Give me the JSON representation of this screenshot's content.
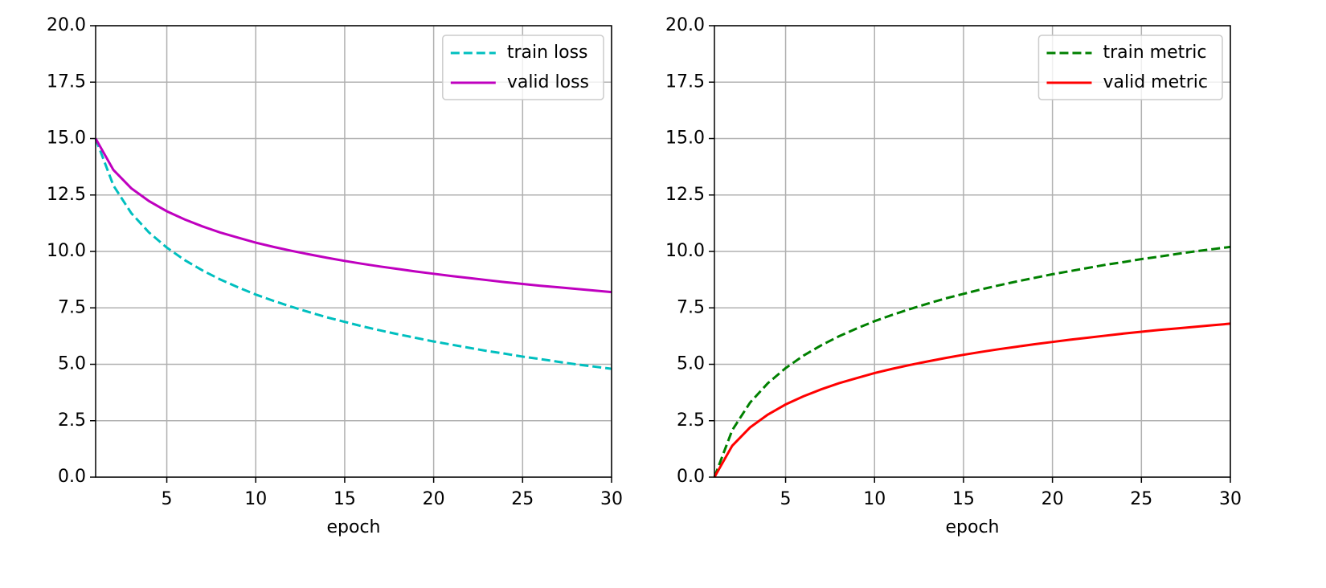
{
  "chart_data": [
    {
      "type": "line",
      "x": [
        1,
        2,
        3,
        4,
        5,
        6,
        7,
        8,
        9,
        10,
        11,
        12,
        13,
        14,
        15,
        16,
        17,
        18,
        19,
        20,
        21,
        22,
        23,
        24,
        25,
        26,
        27,
        28,
        29,
        30
      ],
      "xlabel": "epoch",
      "xlim": [
        1,
        30
      ],
      "xticks": [
        5,
        10,
        15,
        20,
        25,
        30
      ],
      "ylim": [
        0,
        20
      ],
      "yticks": [
        {
          "value": 0,
          "label": "0.0"
        },
        {
          "value": 2.5,
          "label": "2.5"
        },
        {
          "value": 5,
          "label": "5.0"
        },
        {
          "value": 7.5,
          "label": "7.5"
        },
        {
          "value": 10,
          "label": "10.0"
        },
        {
          "value": 12.5,
          "label": "12.5"
        },
        {
          "value": 15,
          "label": "15.0"
        },
        {
          "value": 17.5,
          "label": "17.5"
        },
        {
          "value": 20,
          "label": "20.0"
        }
      ],
      "grid": true,
      "legend": "upper right",
      "series": [
        {
          "name": "train loss",
          "color": "#00bfbf",
          "linestyle": "dashed",
          "values": [
            15,
            12.92,
            11.7,
            10.84,
            10.17,
            9.62,
            9.16,
            8.76,
            8.41,
            8.09,
            7.81,
            7.55,
            7.31,
            7.08,
            6.88,
            6.68,
            6.5,
            6.33,
            6.17,
            6.01,
            5.87,
            5.73,
            5.59,
            5.47,
            5.34,
            5.23,
            5.11,
            5.0,
            4.9,
            4.8
          ]
        },
        {
          "name": "valid loss",
          "color": "#bf00bf",
          "linestyle": "solid",
          "values": [
            15,
            13.61,
            12.8,
            12.23,
            11.78,
            11.42,
            11.11,
            10.84,
            10.61,
            10.39,
            10.2,
            10.03,
            9.87,
            9.72,
            9.58,
            9.45,
            9.33,
            9.22,
            9.11,
            9.01,
            8.91,
            8.82,
            8.73,
            8.64,
            8.56,
            8.48,
            8.41,
            8.34,
            8.27,
            8.2
          ]
        }
      ]
    },
    {
      "type": "line",
      "x": [
        1,
        2,
        3,
        4,
        5,
        6,
        7,
        8,
        9,
        10,
        11,
        12,
        13,
        14,
        15,
        16,
        17,
        18,
        19,
        20,
        21,
        22,
        23,
        24,
        25,
        26,
        27,
        28,
        29,
        30
      ],
      "xlabel": "epoch",
      "xlim": [
        1,
        30
      ],
      "xticks": [
        5,
        10,
        15,
        20,
        25,
        30
      ],
      "ylim": [
        0,
        20
      ],
      "yticks": [
        {
          "value": 0,
          "label": "0.0"
        },
        {
          "value": 2.5,
          "label": "2.5"
        },
        {
          "value": 5,
          "label": "5.0"
        },
        {
          "value": 7.5,
          "label": "7.5"
        },
        {
          "value": 10,
          "label": "10.0"
        },
        {
          "value": 12.5,
          "label": "12.5"
        },
        {
          "value": 15,
          "label": "15.0"
        },
        {
          "value": 17.5,
          "label": "17.5"
        },
        {
          "value": 20,
          "label": "20.0"
        }
      ],
      "grid": true,
      "legend": "upper right",
      "series": [
        {
          "name": "train metric",
          "color": "#008000",
          "linestyle": "dashed",
          "values": [
            0,
            2.08,
            3.3,
            4.16,
            4.83,
            5.38,
            5.84,
            6.24,
            6.59,
            6.91,
            7.19,
            7.45,
            7.69,
            7.92,
            8.12,
            8.32,
            8.5,
            8.67,
            8.83,
            8.99,
            9.13,
            9.27,
            9.41,
            9.53,
            9.66,
            9.77,
            9.89,
            10.0,
            10.1,
            10.2
          ]
        },
        {
          "name": "valid metric",
          "color": "#ff0000",
          "linestyle": "solid",
          "values": [
            0,
            1.39,
            2.2,
            2.77,
            3.22,
            3.58,
            3.89,
            4.16,
            4.39,
            4.61,
            4.8,
            4.97,
            5.13,
            5.28,
            5.42,
            5.55,
            5.67,
            5.78,
            5.89,
            5.99,
            6.09,
            6.18,
            6.27,
            6.36,
            6.44,
            6.52,
            6.59,
            6.66,
            6.73,
            6.8
          ]
        }
      ]
    }
  ]
}
